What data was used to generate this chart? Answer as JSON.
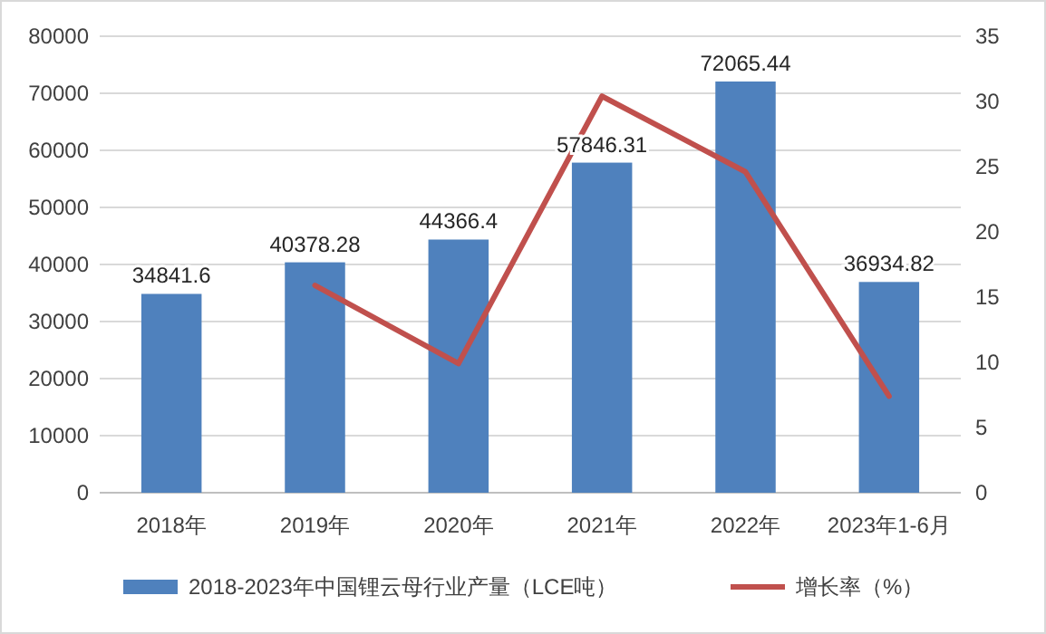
{
  "chart_data": {
    "type": "bar",
    "categories": [
      "2018年",
      "2019年",
      "2020年",
      "2021年",
      "2022年",
      "2023年1-6月"
    ],
    "series": [
      {
        "name": "2018-2023年中国锂云母行业产量（LCE吨）",
        "color": "#4f81bd",
        "values": [
          34841.6,
          40378.28,
          44366.4,
          57846.31,
          72065.44,
          36934.82
        ],
        "data_labels": true
      },
      {
        "name": "增长率（%）",
        "type": "line",
        "axis": "y2",
        "color": "#c0504d",
        "values": [
          null,
          15.9,
          9.9,
          30.4,
          24.6,
          7.4
        ]
      }
    ],
    "ylim": [
      0,
      80000
    ],
    "yticks": [
      0,
      10000,
      20000,
      30000,
      40000,
      50000,
      60000,
      70000,
      80000
    ],
    "y2lim": [
      0,
      35
    ],
    "y2ticks": [
      0,
      5,
      10,
      15,
      20,
      25,
      30,
      35
    ],
    "grid": "y",
    "legend": "bottom",
    "marker": "none",
    "line_style": "solid"
  }
}
